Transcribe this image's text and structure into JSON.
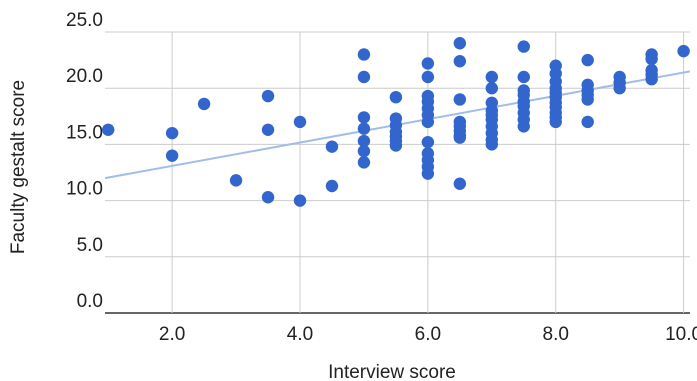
{
  "colors": {
    "point": "#3366cc",
    "trendline": "#a3bdea",
    "grid": "#cccccc",
    "axis": "#333333",
    "background": "#ffffff"
  },
  "chart_data": {
    "type": "scatter",
    "title": "",
    "xlabel": "Interview score",
    "ylabel": "Faculty gestalt score",
    "xlim": [
      0.95,
      10.1
    ],
    "ylim": [
      0,
      25
    ],
    "x_ticks": [
      2,
      4,
      6,
      8,
      10
    ],
    "x_tick_labels": [
      "2.0",
      "4.0",
      "6.0",
      "8.0",
      "10.0"
    ],
    "y_ticks": [
      0,
      5,
      10,
      15,
      20,
      25
    ],
    "y_tick_labels": [
      "0.0",
      "5.0",
      "10.0",
      "15.0",
      "20.0",
      "25.0"
    ],
    "grid": true,
    "legend": "none",
    "trendline": {
      "x_start": 0.95,
      "y_start": 12.0,
      "x_end": 10.1,
      "y_end": 21.5
    },
    "points": [
      [
        1.0,
        16.3
      ],
      [
        2.0,
        16.0
      ],
      [
        2.0,
        14.0
      ],
      [
        2.5,
        18.6
      ],
      [
        3.0,
        11.8
      ],
      [
        3.5,
        19.3
      ],
      [
        3.5,
        16.3
      ],
      [
        3.5,
        10.3
      ],
      [
        4.0,
        17.0
      ],
      [
        4.0,
        10.0
      ],
      [
        4.5,
        14.8
      ],
      [
        4.5,
        11.3
      ],
      [
        5.0,
        23.0
      ],
      [
        5.0,
        21.0
      ],
      [
        5.0,
        17.4
      ],
      [
        5.0,
        16.4
      ],
      [
        5.0,
        15.3
      ],
      [
        5.0,
        14.4
      ],
      [
        5.0,
        13.4
      ],
      [
        5.5,
        19.2
      ],
      [
        5.5,
        17.3
      ],
      [
        5.5,
        16.7
      ],
      [
        5.5,
        16.1
      ],
      [
        5.5,
        15.7
      ],
      [
        5.5,
        15.3
      ],
      [
        5.5,
        14.9
      ],
      [
        6.0,
        22.2
      ],
      [
        6.0,
        21.0
      ],
      [
        6.0,
        19.3
      ],
      [
        6.0,
        18.8
      ],
      [
        6.0,
        18.2
      ],
      [
        6.0,
        17.6
      ],
      [
        6.0,
        17.0
      ],
      [
        6.0,
        15.2
      ],
      [
        6.0,
        14.2
      ],
      [
        6.0,
        13.6
      ],
      [
        6.0,
        13.0
      ],
      [
        6.0,
        12.4
      ],
      [
        6.5,
        24.0
      ],
      [
        6.5,
        22.4
      ],
      [
        6.5,
        19.0
      ],
      [
        6.5,
        17.0
      ],
      [
        6.5,
        16.6
      ],
      [
        6.5,
        16.2
      ],
      [
        6.5,
        15.8
      ],
      [
        6.5,
        15.6
      ],
      [
        6.5,
        11.5
      ],
      [
        7.0,
        21.0
      ],
      [
        7.0,
        20.0
      ],
      [
        7.0,
        18.7
      ],
      [
        7.0,
        18.0
      ],
      [
        7.0,
        17.6
      ],
      [
        7.0,
        17.2
      ],
      [
        7.0,
        16.6
      ],
      [
        7.0,
        16.0
      ],
      [
        7.0,
        15.4
      ],
      [
        7.0,
        15.0
      ],
      [
        7.5,
        23.7
      ],
      [
        7.5,
        21.0
      ],
      [
        7.5,
        19.8
      ],
      [
        7.5,
        19.4
      ],
      [
        7.5,
        18.8
      ],
      [
        7.5,
        18.4
      ],
      [
        7.5,
        17.8
      ],
      [
        7.5,
        17.2
      ],
      [
        7.5,
        16.6
      ],
      [
        8.0,
        22.0
      ],
      [
        8.0,
        21.3
      ],
      [
        8.0,
        20.6
      ],
      [
        8.0,
        20.0
      ],
      [
        8.0,
        19.6
      ],
      [
        8.0,
        19.2
      ],
      [
        8.0,
        18.7
      ],
      [
        8.0,
        18.3
      ],
      [
        8.0,
        17.8
      ],
      [
        8.0,
        17.4
      ],
      [
        8.0,
        17.0
      ],
      [
        8.5,
        22.5
      ],
      [
        8.5,
        20.3
      ],
      [
        8.5,
        19.8
      ],
      [
        8.5,
        19.4
      ],
      [
        8.5,
        19.0
      ],
      [
        8.5,
        17.0
      ],
      [
        9.0,
        21.0
      ],
      [
        9.0,
        20.5
      ],
      [
        9.0,
        20.0
      ],
      [
        9.5,
        23.0
      ],
      [
        9.5,
        22.6
      ],
      [
        9.5,
        21.6
      ],
      [
        9.5,
        21.2
      ],
      [
        9.5,
        20.8
      ],
      [
        10.0,
        23.3
      ]
    ]
  }
}
